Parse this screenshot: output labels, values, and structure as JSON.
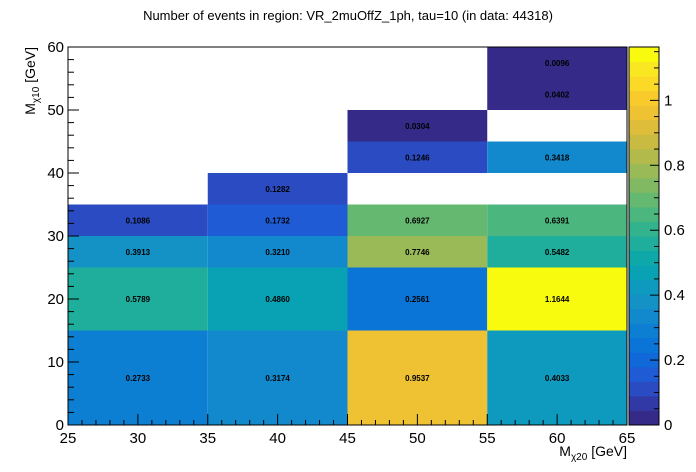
{
  "chart_data": {
    "type": "heatmap",
    "title": "Number of events in region: VR_2muOffZ_1ph, tau=10 (in data: 44318)",
    "xlabel": {
      "main": "M",
      "sub": "χ20",
      "unit": " [GeV]"
    },
    "ylabel": {
      "main": "M",
      "sub": "χ10",
      "unit": " [GeV]"
    },
    "xlim": [
      25,
      65
    ],
    "ylim": [
      0,
      60
    ],
    "x_ticks": [
      "25",
      "30",
      "35",
      "40",
      "45",
      "50",
      "55",
      "60",
      "65"
    ],
    "y_ticks": [
      "0",
      "10",
      "20",
      "30",
      "40",
      "50",
      "60"
    ],
    "z_range": [
      0,
      1.1644
    ],
    "colorbar_ticks": [
      "0",
      "0.2",
      "0.4",
      "0.6",
      "0.8",
      "1"
    ],
    "cells": [
      {
        "x": [
          25,
          35
        ],
        "y": [
          0,
          15
        ],
        "value": 0.2733,
        "label": "0.2733"
      },
      {
        "x": [
          35,
          45
        ],
        "y": [
          0,
          15
        ],
        "value": 0.3174,
        "label": "0.3174"
      },
      {
        "x": [
          45,
          55
        ],
        "y": [
          0,
          15
        ],
        "value": 0.9537,
        "label": "0.9537"
      },
      {
        "x": [
          55,
          65
        ],
        "y": [
          0,
          15
        ],
        "value": 0.4033,
        "label": "0.4033"
      },
      {
        "x": [
          25,
          35
        ],
        "y": [
          15,
          25
        ],
        "value": 0.5789,
        "label": "0.5789"
      },
      {
        "x": [
          35,
          45
        ],
        "y": [
          15,
          25
        ],
        "value": 0.486,
        "label": "0.4860"
      },
      {
        "x": [
          45,
          55
        ],
        "y": [
          15,
          25
        ],
        "value": 0.2561,
        "label": "0.2561"
      },
      {
        "x": [
          55,
          65
        ],
        "y": [
          15,
          25
        ],
        "value": 1.1644,
        "label": "1.1644"
      },
      {
        "x": [
          25,
          35
        ],
        "y": [
          25,
          30
        ],
        "value": 0.3913,
        "label": "0.3913"
      },
      {
        "x": [
          35,
          45
        ],
        "y": [
          25,
          30
        ],
        "value": 0.321,
        "label": "0.3210"
      },
      {
        "x": [
          45,
          55
        ],
        "y": [
          25,
          30
        ],
        "value": 0.7746,
        "label": "0.7746"
      },
      {
        "x": [
          55,
          65
        ],
        "y": [
          25,
          30
        ],
        "value": 0.5482,
        "label": "0.5482"
      },
      {
        "x": [
          25,
          35
        ],
        "y": [
          30,
          35
        ],
        "value": 0.1086,
        "label": "0.1086"
      },
      {
        "x": [
          35,
          45
        ],
        "y": [
          30,
          35
        ],
        "value": 0.1732,
        "label": "0.1732"
      },
      {
        "x": [
          45,
          55
        ],
        "y": [
          30,
          35
        ],
        "value": 0.6927,
        "label": "0.6927"
      },
      {
        "x": [
          55,
          65
        ],
        "y": [
          30,
          35
        ],
        "value": 0.6391,
        "label": "0.6391"
      },
      {
        "x": [
          35,
          45
        ],
        "y": [
          35,
          40
        ],
        "value": 0.1282,
        "label": "0.1282"
      },
      {
        "x": [
          45,
          55
        ],
        "y": [
          40,
          45
        ],
        "value": 0.1246,
        "label": "0.1246"
      },
      {
        "x": [
          55,
          65
        ],
        "y": [
          40,
          45
        ],
        "value": 0.3418,
        "label": "0.3418"
      },
      {
        "x": [
          45,
          55
        ],
        "y": [
          45,
          50
        ],
        "value": 0.0304,
        "label": "0.0304"
      },
      {
        "x": [
          55,
          65
        ],
        "y": [
          50,
          55
        ],
        "value": 0.0402,
        "label": "0.0402"
      },
      {
        "x": [
          55,
          65
        ],
        "y": [
          55,
          60
        ],
        "value": 0.0096,
        "label": "0.0096"
      }
    ],
    "palette": [
      "#352a87",
      "#3039a6",
      "#2a4bc2",
      "#1e5bd5",
      "#1168d9",
      "#0b74d7",
      "#0d7fd3",
      "#1389cd",
      "#1492c6",
      "#0e9abe",
      "#08a2b4",
      "#0fa8a9",
      "#1fae9c",
      "#33b38d",
      "#4bb67e",
      "#65b86f",
      "#80b962",
      "#9aba57",
      "#b3ba4c",
      "#c9bb42",
      "#ddbd3a",
      "#eec233",
      "#f8ca2c",
      "#fbd927",
      "#f9e821",
      "#f9fb0e"
    ]
  }
}
